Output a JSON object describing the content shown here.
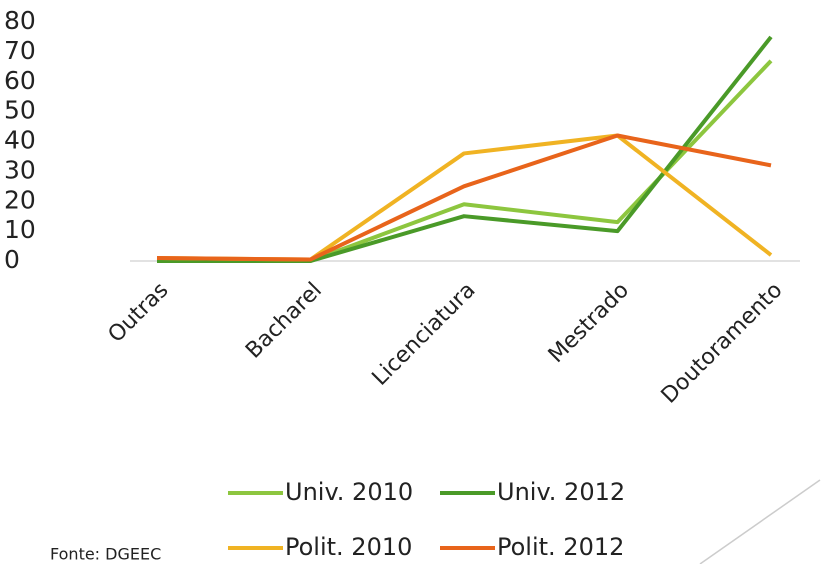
{
  "chart_data": {
    "type": "line",
    "categories": [
      "Outras",
      "Bacharel",
      "Licenciatura",
      "Mestrado",
      "Doutoramento"
    ],
    "series": [
      {
        "name": "Univ. 2010",
        "color": "#8dc63f",
        "values": [
          0,
          0,
          19,
          13,
          67
        ]
      },
      {
        "name": "Univ. 2012",
        "color": "#4a9a28",
        "values": [
          0,
          0,
          15,
          10,
          75
        ]
      },
      {
        "name": "Polit. 2010",
        "color": "#f0b323",
        "values": [
          1,
          0.5,
          36,
          42,
          2
        ]
      },
      {
        "name": "Polit. 2012",
        "color": "#e8641b",
        "values": [
          1,
          0.5,
          25,
          42,
          32
        ]
      }
    ],
    "ylim": [
      0,
      80
    ],
    "yticks": [
      0,
      10,
      20,
      30,
      40,
      50,
      60,
      70,
      80
    ],
    "legend": "bottom",
    "source": "Fonte: DGEEC"
  }
}
